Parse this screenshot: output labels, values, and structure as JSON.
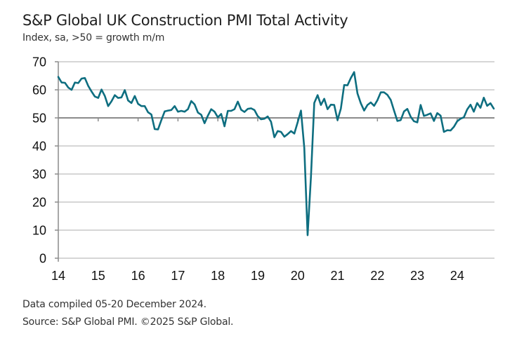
{
  "header": {
    "title": "S&P Global UK Construction PMI Total Activity",
    "subtitle": "Index, sa, >50 = growth m/m"
  },
  "footer": {
    "compiled": "Data compiled 05-20 December 2024.",
    "source": "Source: S&P Global PMI. ©2025 S&P Global."
  },
  "colors": {
    "series": "#0e6e80",
    "grid": "#c8c8c8",
    "axis": "#8c8c8c"
  },
  "chart_data": {
    "type": "line",
    "title": "S&P Global UK Construction PMI Total Activity",
    "subtitle": "Index, sa, >50 = growth m/m",
    "xlabel": "",
    "ylabel": "",
    "ylim": [
      0,
      70
    ],
    "yticks": [
      "0",
      "10",
      "20",
      "30",
      "40",
      "50",
      "60",
      "70"
    ],
    "xticks": [
      "14",
      "15",
      "16",
      "17",
      "18",
      "19",
      "20",
      "21",
      "22",
      "23",
      "24"
    ],
    "x_start": "2014-01",
    "x_end": "2024-12",
    "x_frequency": "monthly",
    "grid": "horizontal",
    "axis_crossing": 50,
    "legend": "none",
    "series": [
      {
        "name": "UK Construction PMI Total Activity",
        "values": [
          64.6,
          62.6,
          62.5,
          60.8,
          60.0,
          62.6,
          62.4,
          64.0,
          64.2,
          61.4,
          59.4,
          57.6,
          57.1,
          60.1,
          57.8,
          54.2,
          55.9,
          58.1,
          57.1,
          57.3,
          59.9,
          56.2,
          55.3,
          57.8,
          55.0,
          54.2,
          54.2,
          52.0,
          51.2,
          46.0,
          45.9,
          49.2,
          52.3,
          52.6,
          52.8,
          54.2,
          52.2,
          52.5,
          52.2,
          53.1,
          56.0,
          54.8,
          51.9,
          51.1,
          48.1,
          50.8,
          53.1,
          52.2,
          50.2,
          51.4,
          47.0,
          52.5,
          52.5,
          53.1,
          55.8,
          52.9,
          52.1,
          53.2,
          53.4,
          52.8,
          50.6,
          49.5,
          49.7,
          50.5,
          48.6,
          43.1,
          45.3,
          45.0,
          43.3,
          44.2,
          45.3,
          44.4,
          48.4,
          52.6,
          39.3,
          8.2,
          28.9,
          55.3,
          58.1,
          54.6,
          56.8,
          53.1,
          54.7,
          54.6,
          49.2,
          53.3,
          61.7,
          61.6,
          64.2,
          66.3,
          58.7,
          55.2,
          52.6,
          54.6,
          55.5,
          54.3,
          56.3,
          59.1,
          59.1,
          58.2,
          56.4,
          52.6,
          48.9,
          49.2,
          52.3,
          53.2,
          50.4,
          48.8,
          48.4,
          54.6,
          50.7,
          51.1,
          51.6,
          48.9,
          51.7,
          50.8,
          45.0,
          45.6,
          45.5,
          46.8,
          48.8,
          49.7,
          50.2,
          53.0,
          54.7,
          52.2,
          55.3,
          53.6,
          57.2,
          54.3,
          55.2,
          53.3
        ]
      }
    ]
  }
}
